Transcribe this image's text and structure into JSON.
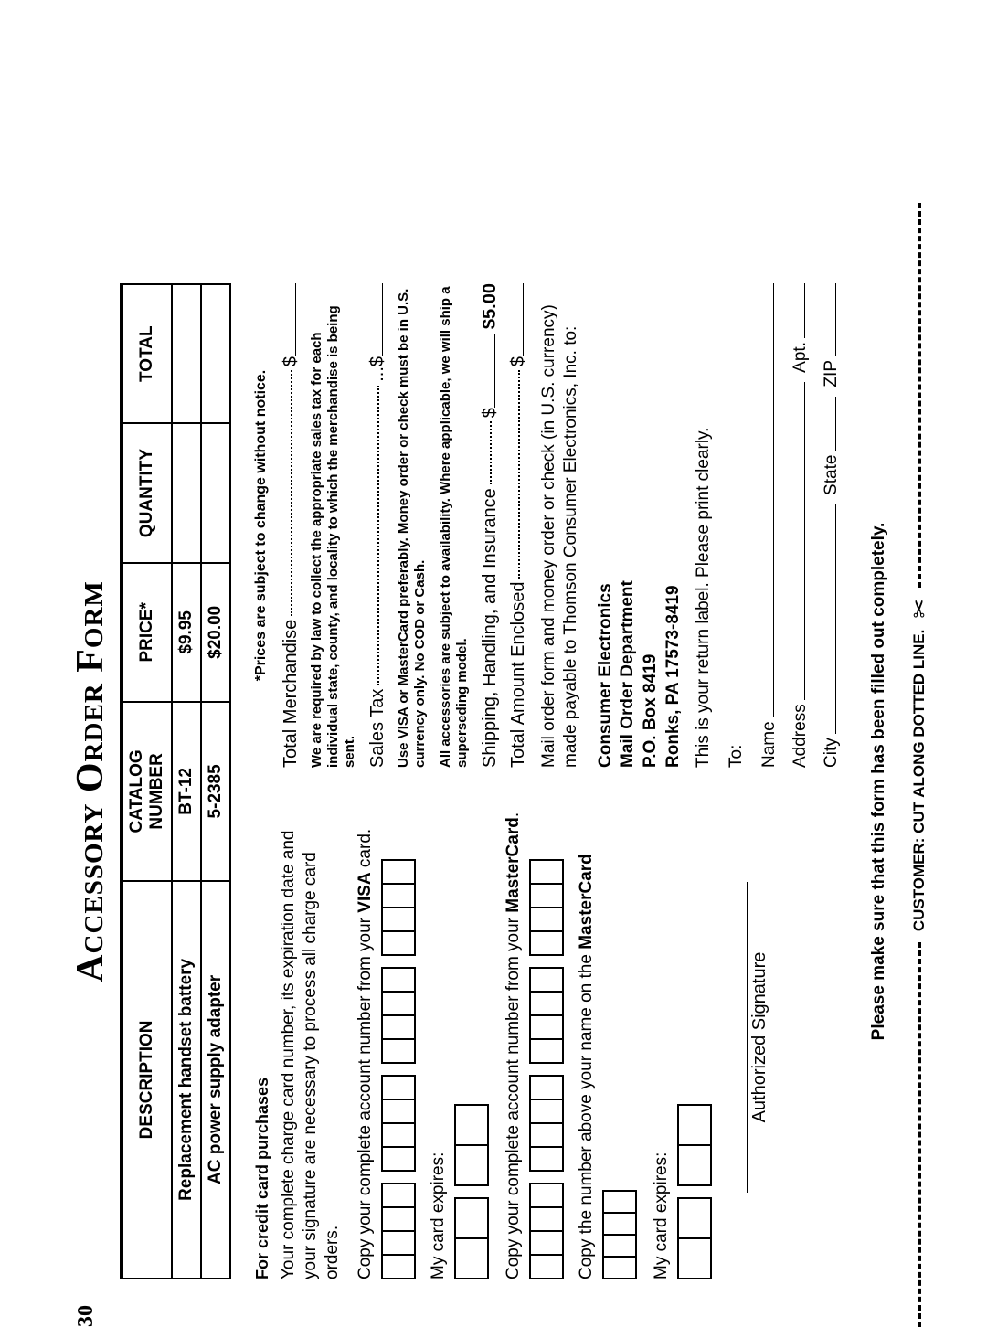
{
  "page_number": "30",
  "title": "Accessory Order Form",
  "table": {
    "headers": {
      "desc": "DESCRIPTION",
      "cat": "CATALOG NUMBER",
      "price": "PRICE*",
      "qty": "QUANTITY",
      "total": "TOTAL"
    },
    "rows": [
      {
        "desc": "Replacement handset battery",
        "cat": "BT-12",
        "price": "$9.95",
        "qty": "",
        "total": ""
      },
      {
        "desc": "AC power supply adapter",
        "cat": "5-2385",
        "price": "$20.00",
        "qty": "",
        "total": ""
      }
    ]
  },
  "left": {
    "cc_heading": "For credit  card purchases",
    "cc_para": "Your complete charge card number, its expiration date and your signature are necessary to process all charge card orders.",
    "visa_instr_pre": "Copy your complete account number from your ",
    "visa_instr_bold": "VISA",
    "visa_instr_post": " card.",
    "visa_groups": [
      4,
      4,
      4,
      4
    ],
    "expire_label": "My card expires:",
    "expire_groups": [
      2,
      2
    ],
    "mc_instr_pre": "Copy your complete account number from your ",
    "mc_instr_bold": "MasterCard",
    "mc_instr_post": ".",
    "mc_groups": [
      4,
      4,
      4,
      4
    ],
    "name_instr_pre": "Copy the number above your name on the ",
    "name_instr_bold": "MasterCard",
    "name_boxes": 4,
    "expire2_label": "My card expires:",
    "expire2_groups": [
      2,
      2
    ],
    "sig_label": "Authorized Signature"
  },
  "right": {
    "price_note": "*Prices are subject to change without notice.",
    "total_merch": "Total Merchandise",
    "tax_fine": "We are required by law to collect the appropriate sales tax for each individual state, county, and locality to which the merchandise is being sent.",
    "sales_tax": "Sales Tax",
    "sales_tax_dots_mid": " ... ",
    "visa_pref_fine": "Use VISA or MasterCard preferably. Money order or check must be in U.S. currency only. No COD or Cash.",
    "avail_fine": "All accessories are subject to availability. Where applicable, we will ship a superseding model.",
    "shi_label": "Shipping, Handling, and Insurance",
    "shi_price": "$5.00",
    "total_enclosed": "Total Amount Enclosed",
    "mail_para": "Mail order form and money order or check (in U.S. currency) made payable to Thomson Consumer Electronics, Inc. to:",
    "addr1": "Consumer Electronics",
    "addr2": "Mail Order Department",
    "addr3": "P.O. Box 8419",
    "addr4": "Ronks, PA 17573-8419",
    "return_note": "This is your return label. Please print clearly.",
    "to_label": "To:",
    "f_name": "Name",
    "f_address": "Address",
    "f_apt": "Apt.",
    "f_city": "City",
    "f_state": "State",
    "f_zip": "ZIP"
  },
  "bottom_note": "Please make sure that this form has been filled out completely.",
  "cut_text": "CUSTOMER: CUT ALONG DOTTED LINE.",
  "scissors_glyph": "✂"
}
